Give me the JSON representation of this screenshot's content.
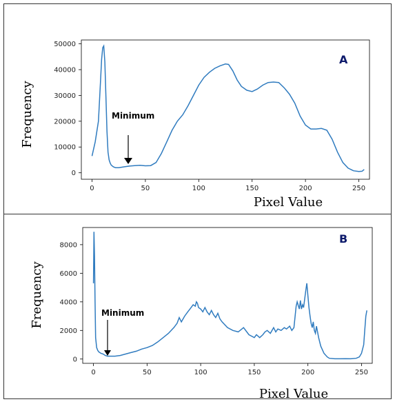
{
  "chart_data": [
    {
      "type": "line",
      "panel_label": "A",
      "xlabel": "Pixel Value",
      "ylabel": "Frequency",
      "xlim": [
        -10,
        260
      ],
      "ylim": [
        -2500,
        51500
      ],
      "xticks": [
        0,
        50,
        100,
        150,
        200,
        250
      ],
      "yticks": [
        0,
        10000,
        20000,
        30000,
        40000,
        50000
      ],
      "annotation": {
        "text": "Minimum",
        "x": 34,
        "y": 2500
      },
      "x": [
        0,
        3,
        6,
        8,
        9,
        10,
        11,
        12,
        13,
        14,
        15,
        16,
        17,
        18,
        20,
        22,
        25,
        30,
        35,
        40,
        45,
        50,
        55,
        60,
        65,
        70,
        75,
        80,
        85,
        90,
        95,
        100,
        105,
        110,
        115,
        120,
        125,
        128,
        132,
        136,
        140,
        145,
        150,
        155,
        160,
        165,
        170,
        175,
        180,
        185,
        190,
        195,
        200,
        205,
        210,
        215,
        220,
        225,
        230,
        235,
        240,
        245,
        250,
        253,
        255
      ],
      "y": [
        6500,
        12000,
        20000,
        36000,
        44000,
        48500,
        49200,
        43000,
        30000,
        16000,
        8000,
        5000,
        3800,
        3000,
        2300,
        2000,
        2000,
        2300,
        2600,
        2800,
        2900,
        2700,
        2800,
        4000,
        7500,
        12000,
        16500,
        20000,
        22500,
        26000,
        30000,
        34000,
        37000,
        39000,
        40500,
        41500,
        42200,
        42000,
        39500,
        36000,
        33500,
        32000,
        31500,
        32500,
        34000,
        35000,
        35200,
        35000,
        33000,
        30500,
        27000,
        22000,
        18500,
        17000,
        17000,
        17200,
        16500,
        13000,
        8000,
        4000,
        1800,
        800,
        500,
        600,
        1300
      ]
    },
    {
      "type": "line",
      "panel_label": "B",
      "xlabel": "Pixel Value",
      "ylabel": "Frequency",
      "xlim": [
        -10,
        260
      ],
      "ylim": [
        -300,
        9200
      ],
      "xticks": [
        0,
        50,
        100,
        150,
        200,
        250
      ],
      "yticks": [
        0,
        2000,
        4000,
        6000,
        8000
      ],
      "annotation": {
        "text": "Minimum",
        "x": 12,
        "y": 150
      },
      "x": [
        0,
        0.5,
        1,
        1.5,
        2,
        3,
        4,
        5,
        7,
        9,
        11,
        13,
        15,
        18,
        20,
        25,
        30,
        35,
        40,
        45,
        50,
        55,
        60,
        65,
        70,
        75,
        78,
        80,
        82,
        85,
        88,
        90,
        93,
        95,
        96,
        97,
        98,
        100,
        102,
        104,
        106,
        108,
        110,
        112,
        114,
        116,
        118,
        120,
        125,
        130,
        135,
        140,
        145,
        150,
        152,
        155,
        158,
        160,
        162,
        165,
        168,
        170,
        172,
        175,
        178,
        180,
        183,
        185,
        187,
        189,
        190,
        192,
        193,
        194,
        195,
        196,
        197,
        198,
        199,
        200,
        201,
        202,
        203,
        204,
        205,
        206,
        207,
        208,
        210,
        212,
        215,
        218,
        220,
        225,
        230,
        235,
        240,
        245,
        248,
        250,
        252,
        253,
        254,
        255
      ],
      "y": [
        5300,
        8900,
        7200,
        4000,
        1500,
        800,
        600,
        500,
        400,
        350,
        250,
        200,
        200,
        200,
        200,
        250,
        350,
        450,
        550,
        700,
        800,
        950,
        1200,
        1500,
        1800,
        2200,
        2500,
        2900,
        2600,
        3000,
        3300,
        3500,
        3800,
        3700,
        4000,
        3900,
        3600,
        3500,
        3300,
        3600,
        3300,
        3100,
        3400,
        3100,
        2900,
        3200,
        2800,
        2600,
        2200,
        2000,
        1900,
        2200,
        1700,
        1500,
        1700,
        1500,
        1700,
        1900,
        2000,
        1800,
        2200,
        1900,
        2100,
        2000,
        2200,
        2100,
        2300,
        2000,
        2200,
        3700,
        4000,
        3500,
        4100,
        3500,
        3800,
        3600,
        4200,
        4800,
        5300,
        4400,
        3600,
        3000,
        2500,
        2200,
        2600,
        2000,
        1800,
        2300,
        1500,
        900,
        400,
        150,
        50,
        20,
        20,
        30,
        20,
        50,
        150,
        400,
        1000,
        2000,
        3000,
        3400
      ]
    }
  ]
}
